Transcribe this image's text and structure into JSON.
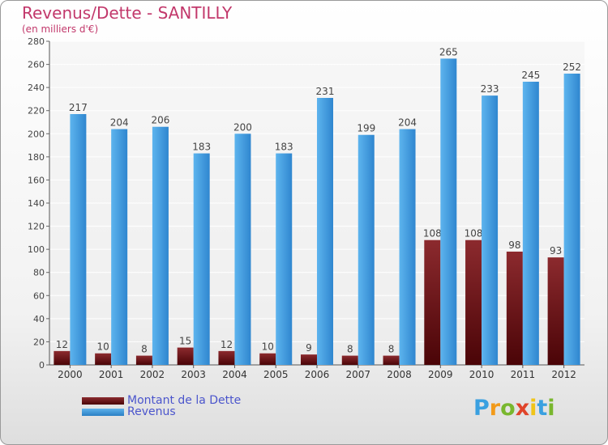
{
  "header": {
    "title": "Revenus/Dette - SANTILLY",
    "subtitle": "(en milliers d'€)"
  },
  "legend": {
    "items": [
      {
        "label": "Montant de la Dette",
        "color": "#6d0f12"
      },
      {
        "label": "Revenus",
        "color": "#3a94dc"
      }
    ]
  },
  "logo": {
    "letters": [
      "P",
      "r",
      "o",
      "x",
      "i",
      "t",
      "i"
    ],
    "colors": [
      "#3aa0e0",
      "#f29a1a",
      "#79b72e",
      "#e0442a",
      "#f0c419",
      "#3aa0e0",
      "#79b72e"
    ]
  },
  "chart_data": {
    "type": "bar",
    "title": "Revenus/Dette - SANTILLY",
    "subtitle": "(en milliers d'€)",
    "xlabel": "",
    "ylabel": "",
    "categories": [
      "2000",
      "2001",
      "2002",
      "2003",
      "2004",
      "2005",
      "2006",
      "2007",
      "2008",
      "2009",
      "2010",
      "2011",
      "2012"
    ],
    "series": [
      {
        "name": "Montant de la Dette",
        "color": "#6d0f12",
        "values": [
          12,
          10,
          8,
          15,
          12,
          10,
          9,
          8,
          8,
          108,
          108,
          98,
          93
        ]
      },
      {
        "name": "Revenus",
        "color": "#3a94dc",
        "values": [
          217,
          204,
          206,
          183,
          200,
          183,
          231,
          199,
          204,
          265,
          233,
          245,
          252
        ]
      }
    ],
    "ylim": [
      0,
      280
    ],
    "yticks": [
      0,
      20,
      40,
      60,
      80,
      100,
      120,
      140,
      160,
      180,
      200,
      220,
      240,
      260,
      280
    ],
    "grid": true,
    "legend_position": "bottom-left"
  }
}
